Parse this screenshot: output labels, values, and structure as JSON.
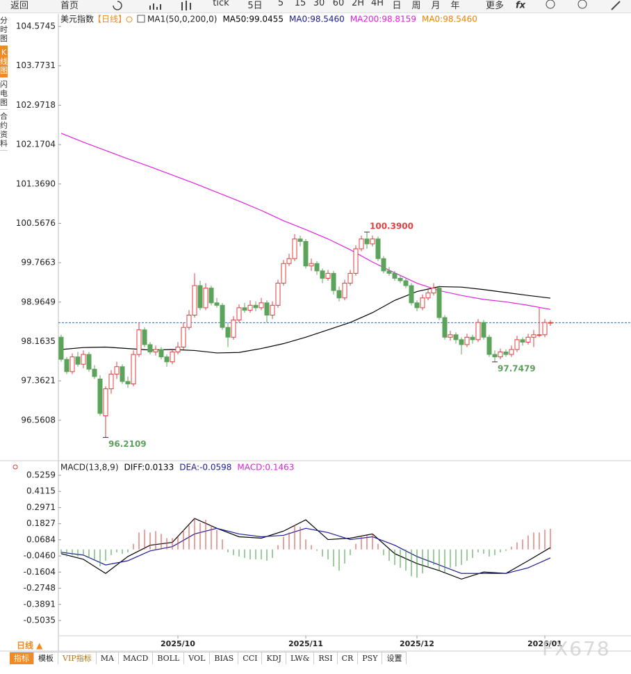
{
  "toolbar": [
    "返回",
    "首页",
    "tick",
    "5日",
    "5",
    "15",
    "30",
    "60",
    "2H",
    "4H",
    "日",
    "周",
    "月",
    "年",
    "更多"
  ],
  "side_tabs": [
    "分时图",
    "K线图",
    "闪电图",
    "合约资料"
  ],
  "chart_data": [
    {
      "type": "candlestick",
      "title": "美元指数",
      "period": "【日线】",
      "indicator": "MA1(50,0,200,0)",
      "legend": [
        {
          "text": "MA50:99.0455",
          "color": "#000000"
        },
        {
          "text": "MA0:98.5460",
          "color": "#1a1a9a"
        },
        {
          "text": "MA200:98.8159",
          "color": "#e020e0"
        },
        {
          "text": "MA0:98.5460",
          "color": "#f08000"
        }
      ],
      "up_color": "#e03c3c",
      "down_color": "#5ba35b",
      "last_price": 98.546,
      "candles": [
        [
          98.25,
          98.3,
          97.75,
          97.8
        ],
        [
          97.8,
          97.85,
          97.5,
          97.55
        ],
        [
          97.55,
          97.92,
          97.5,
          97.85
        ],
        [
          97.85,
          97.95,
          97.65,
          97.7
        ],
        [
          97.7,
          97.98,
          97.62,
          97.9
        ],
        [
          97.9,
          97.95,
          97.55,
          97.6
        ],
        [
          97.6,
          97.68,
          97.4,
          97.45
        ],
        [
          97.4,
          97.48,
          96.65,
          96.7
        ],
        [
          96.65,
          97.25,
          96.2109,
          97.2
        ],
        [
          97.2,
          97.58,
          97.1,
          97.5
        ],
        [
          97.5,
          97.75,
          97.4,
          97.65
        ],
        [
          97.65,
          97.7,
          97.3,
          97.35
        ],
        [
          97.35,
          97.45,
          97.22,
          97.3
        ],
        [
          97.3,
          97.98,
          97.25,
          97.9
        ],
        [
          97.9,
          98.55,
          97.85,
          98.4
        ],
        [
          98.4,
          98.45,
          98.05,
          98.1
        ],
        [
          98.1,
          98.15,
          97.9,
          97.95
        ],
        [
          97.95,
          98.08,
          97.88,
          98.0
        ],
        [
          98.0,
          98.05,
          97.8,
          97.85
        ],
        [
          97.85,
          97.9,
          97.65,
          97.75
        ],
        [
          97.75,
          98.0,
          97.7,
          97.95
        ],
        [
          97.95,
          98.15,
          97.9,
          98.05
        ],
        [
          98.05,
          98.55,
          98.0,
          98.45
        ],
        [
          98.45,
          98.8,
          98.4,
          98.7
        ],
        [
          98.7,
          99.55,
          98.65,
          99.3
        ],
        [
          99.3,
          99.4,
          98.8,
          98.85
        ],
        [
          98.85,
          99.35,
          98.8,
          99.25
        ],
        [
          99.25,
          99.3,
          98.9,
          98.95
        ],
        [
          98.95,
          99.05,
          98.85,
          98.9
        ],
        [
          98.9,
          98.95,
          98.4,
          98.45
        ],
        [
          98.45,
          98.55,
          98.05,
          98.25
        ],
        [
          98.25,
          98.68,
          98.2,
          98.6
        ],
        [
          98.6,
          98.92,
          98.55,
          98.85
        ],
        [
          98.85,
          98.95,
          98.75,
          98.8
        ],
        [
          98.8,
          99.0,
          98.75,
          98.9
        ],
        [
          98.9,
          98.98,
          98.78,
          98.85
        ],
        [
          98.85,
          99.05,
          98.8,
          98.95
        ],
        [
          98.95,
          99.0,
          98.55,
          98.7
        ],
        [
          98.7,
          98.98,
          98.62,
          98.9
        ],
        [
          98.9,
          99.42,
          98.85,
          99.35
        ],
        [
          99.35,
          99.82,
          99.3,
          99.75
        ],
        [
          99.75,
          99.95,
          99.7,
          99.85
        ],
        [
          99.85,
          100.35,
          99.8,
          100.25
        ],
        [
          100.25,
          100.32,
          100.1,
          100.2
        ],
        [
          100.2,
          100.25,
          99.65,
          99.7
        ],
        [
          99.7,
          99.85,
          99.6,
          99.75
        ],
        [
          99.75,
          99.8,
          99.52,
          99.6
        ],
        [
          99.6,
          99.65,
          99.35,
          99.45
        ],
        [
          99.45,
          99.62,
          99.4,
          99.55
        ],
        [
          99.55,
          99.6,
          99.12,
          99.2
        ],
        [
          99.2,
          99.28,
          98.98,
          99.05
        ],
        [
          99.05,
          99.42,
          99.0,
          99.35
        ],
        [
          99.35,
          99.62,
          99.3,
          99.55
        ],
        [
          99.55,
          100.12,
          99.5,
          100.05
        ],
        [
          100.05,
          100.32,
          100.0,
          100.25
        ],
        [
          100.25,
          100.39,
          100.05,
          100.15
        ],
        [
          100.15,
          100.32,
          100.1,
          100.25
        ],
        [
          100.25,
          100.3,
          99.8,
          99.85
        ],
        [
          99.85,
          99.9,
          99.55,
          99.6
        ],
        [
          99.6,
          99.68,
          99.5,
          99.55
        ],
        [
          99.55,
          99.6,
          99.4,
          99.45
        ],
        [
          99.45,
          99.52,
          99.35,
          99.4
        ],
        [
          99.4,
          99.45,
          99.25,
          99.3
        ],
        [
          99.3,
          99.35,
          98.9,
          98.95
        ],
        [
          98.95,
          99.0,
          98.78,
          98.85
        ],
        [
          98.85,
          99.12,
          98.8,
          99.05
        ],
        [
          99.05,
          99.22,
          99.0,
          99.15
        ],
        [
          99.15,
          99.35,
          99.1,
          99.25
        ],
        [
          99.25,
          99.3,
          98.6,
          98.65
        ],
        [
          98.65,
          98.7,
          98.2,
          98.25
        ],
        [
          98.25,
          98.38,
          98.18,
          98.3
        ],
        [
          98.3,
          98.35,
          98.12,
          98.2
        ],
        [
          98.2,
          98.25,
          97.9,
          98.1
        ],
        [
          98.1,
          98.32,
          98.05,
          98.25
        ],
        [
          98.25,
          98.3,
          98.12,
          98.2
        ],
        [
          98.2,
          98.62,
          98.15,
          98.55
        ],
        [
          98.55,
          98.6,
          98.2,
          98.25
        ],
        [
          98.25,
          98.3,
          97.85,
          97.9
        ],
        [
          97.9,
          97.98,
          97.7479,
          97.85
        ],
        [
          97.85,
          98.02,
          97.8,
          97.95
        ],
        [
          97.95,
          98.0,
          97.85,
          97.9
        ],
        [
          97.9,
          98.08,
          97.85,
          98.0
        ],
        [
          98.0,
          98.28,
          97.95,
          98.2
        ],
        [
          98.2,
          98.25,
          98.08,
          98.15
        ],
        [
          98.15,
          98.32,
          98.1,
          98.25
        ],
        [
          98.25,
          98.4,
          98.05,
          98.3
        ],
        [
          98.3,
          98.85,
          98.25,
          98.3
        ],
        [
          98.3,
          98.62,
          98.25,
          98.55
        ],
        [
          98.55,
          98.6,
          98.48,
          98.55
        ]
      ],
      "series": [
        {
          "color": "#000000",
          "x": [
            0,
            4,
            8,
            12,
            16,
            20,
            24,
            28,
            32,
            36,
            40,
            44,
            48,
            52,
            56,
            60,
            64,
            68,
            72,
            76,
            80,
            84,
            88
          ],
          "values": [
            98.0,
            98.04,
            98.05,
            98.02,
            97.99,
            98.0,
            97.98,
            97.93,
            97.94,
            98.02,
            98.12,
            98.25,
            98.4,
            98.55,
            98.75,
            99.0,
            99.18,
            99.28,
            99.27,
            99.22,
            99.16,
            99.1,
            99.0455
          ]
        },
        {
          "color": "#e020e0",
          "x": [
            0,
            4,
            8,
            12,
            16,
            20,
            24,
            28,
            32,
            36,
            40,
            44,
            48,
            52,
            56,
            60,
            64,
            68,
            72,
            76,
            80,
            84,
            88
          ],
          "values": [
            102.4,
            102.22,
            102.05,
            101.88,
            101.72,
            101.55,
            101.38,
            101.2,
            101.02,
            100.83,
            100.62,
            100.44,
            100.25,
            100.03,
            99.78,
            99.56,
            99.35,
            99.2,
            99.1,
            99.02,
            98.97,
            98.9,
            98.8159
          ]
        }
      ],
      "extreme_labels": [
        {
          "value": 100.39,
          "label": "100.3900",
          "color": "#e04040"
        },
        {
          "value": 97.7479,
          "label": "97.7479",
          "color": "#5aa05a"
        },
        {
          "value": 96.2109,
          "label": "96.2109",
          "color": "#5aa05a"
        }
      ],
      "ylim": [
        95.78,
        104.83
      ],
      "yticks": [
        {
          "value": 104.5745,
          "label": "104.5745"
        },
        {
          "value": 103.7731,
          "label": "103.7731"
        },
        {
          "value": 102.9718,
          "label": "102.9718"
        },
        {
          "value": 102.1704,
          "label": "102.1704"
        },
        {
          "value": 101.369,
          "label": "101.3690"
        },
        {
          "value": 100.5676,
          "label": "100.5676"
        },
        {
          "value": 99.7663,
          "label": "99.7663"
        },
        {
          "value": 98.9649,
          "label": "98.9649"
        },
        {
          "value": 98.1635,
          "label": "98.1635"
        },
        {
          "value": 97.3621,
          "label": "97.3621"
        },
        {
          "value": 96.5608,
          "label": "96.5608"
        }
      ],
      "xticks": [
        {
          "value": 21,
          "label": "2025/10"
        },
        {
          "value": 44,
          "label": "2025/11"
        },
        {
          "value": 64,
          "label": "2025/12"
        },
        {
          "value": 87,
          "label": "2026/01"
        }
      ]
    },
    {
      "type": "macd",
      "title": "MACD(13,8,9)",
      "legend": [
        {
          "text": "DIFF:0.0133",
          "color": "#000000"
        },
        {
          "text": "DEA:-0.0598",
          "color": "#1a1a9a"
        },
        {
          "text": "MACD:0.1463",
          "color": "#e020e0"
        }
      ],
      "up_color": "#e03c3c",
      "down_color": "#3c9a3c",
      "histogram": [
        -0.03,
        -0.05,
        -0.04,
        -0.05,
        -0.04,
        -0.06,
        -0.08,
        -0.12,
        -0.08,
        -0.04,
        -0.02,
        -0.03,
        -0.02,
        0.04,
        0.12,
        0.14,
        0.12,
        0.13,
        0.11,
        0.08,
        0.08,
        0.09,
        0.14,
        0.17,
        0.22,
        0.19,
        0.21,
        0.17,
        0.14,
        0.07,
        -0.02,
        -0.04,
        -0.05,
        -0.06,
        -0.07,
        -0.07,
        -0.07,
        -0.08,
        -0.06,
        0.03,
        0.09,
        0.12,
        0.17,
        0.16,
        0.07,
        0.03,
        -0.01,
        -0.05,
        -0.07,
        -0.12,
        -0.15,
        -0.1,
        -0.04,
        0.04,
        0.09,
        0.1,
        0.11,
        0.04,
        -0.04,
        -0.08,
        -0.11,
        -0.13,
        -0.15,
        -0.19,
        -0.2,
        -0.17,
        -0.13,
        -0.11,
        -0.15,
        -0.16,
        -0.13,
        -0.12,
        -0.11,
        -0.08,
        -0.06,
        -0.02,
        -0.03,
        -0.05,
        -0.04,
        -0.02,
        -0.01,
        0.02,
        0.05,
        0.07,
        0.1,
        0.12,
        0.12,
        0.14,
        0.1463
      ],
      "series": [
        {
          "color": "#000000",
          "x": [
            0,
            4,
            8,
            12,
            16,
            20,
            24,
            28,
            32,
            36,
            40,
            44,
            48,
            52,
            56,
            60,
            64,
            68,
            72,
            76,
            80,
            84,
            88
          ],
          "values": [
            -0.03,
            -0.07,
            -0.17,
            -0.05,
            0.03,
            0.05,
            0.22,
            0.15,
            0.09,
            0.08,
            0.13,
            0.21,
            0.07,
            0.08,
            0.11,
            -0.03,
            -0.1,
            -0.15,
            -0.21,
            -0.16,
            -0.17,
            -0.08,
            0.0133
          ]
        },
        {
          "color": "#1a1a9a",
          "x": [
            0,
            4,
            8,
            12,
            16,
            20,
            24,
            28,
            32,
            36,
            40,
            44,
            48,
            52,
            56,
            60,
            64,
            68,
            72,
            76,
            80,
            84,
            88
          ],
          "values": [
            -0.02,
            -0.04,
            -0.11,
            -0.08,
            -0.01,
            0.02,
            0.11,
            0.15,
            0.11,
            0.09,
            0.1,
            0.15,
            0.12,
            0.07,
            0.09,
            0.03,
            -0.05,
            -0.11,
            -0.17,
            -0.17,
            -0.17,
            -0.13,
            -0.0598
          ]
        }
      ],
      "ylim": [
        -0.612,
        0.6195
      ],
      "yticks": [
        {
          "value": 0.5259,
          "label": "0.5259"
        },
        {
          "value": 0.4115,
          "label": "0.4115"
        },
        {
          "value": 0.2971,
          "label": "0.2971"
        },
        {
          "value": 0.1827,
          "label": "0.1827"
        },
        {
          "value": 0.0684,
          "label": "0.0684"
        },
        {
          "value": -0.046,
          "label": "-0.0460"
        },
        {
          "value": -0.1604,
          "label": "-0.1604"
        },
        {
          "value": -0.2748,
          "label": "-0.2748"
        },
        {
          "value": -0.3891,
          "label": "-0.3891"
        },
        {
          "value": -0.5035,
          "label": "-0.5035"
        }
      ]
    }
  ],
  "period_selector": "日线 ▲",
  "bottom_tabs": [
    "指标",
    "模板",
    "VIP指标",
    "MA",
    "MACD",
    "BOLL",
    "VOL",
    "BIAS",
    "CCI",
    "KDJ",
    "LW&",
    "RSI",
    "CR",
    "PSY",
    "设置"
  ],
  "watermark": "FX678"
}
